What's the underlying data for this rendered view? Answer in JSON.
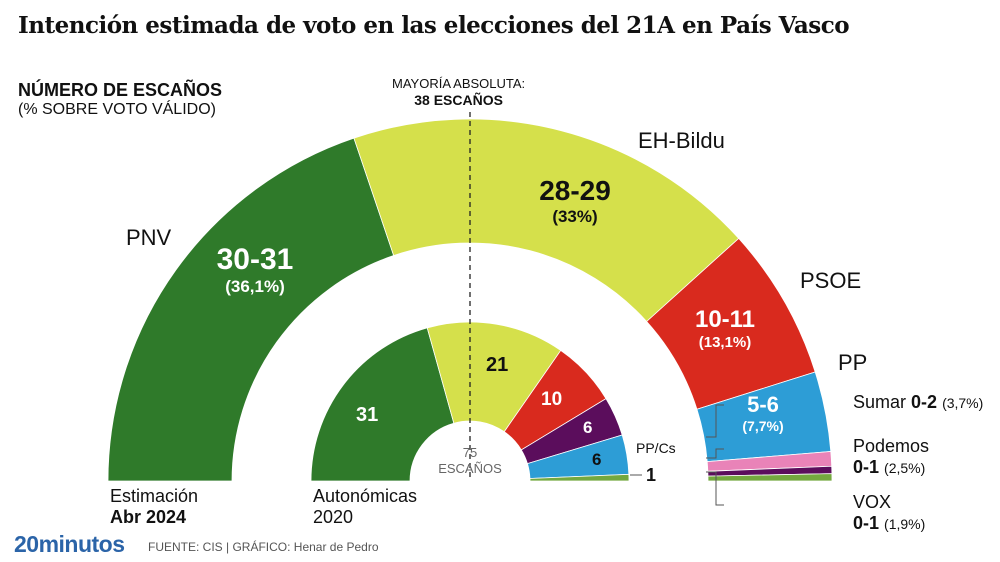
{
  "title": "Intención estimada de voto en las elecciones del 21A en País Vasco",
  "subtitle": "NÚMERO DE ESCAÑOS",
  "subtitle2": "(% SOBRE VOTO VÁLIDO)",
  "majority": {
    "label": "MAYORÍA ABSOLUTA:",
    "value": "38 ESCAÑOS"
  },
  "footer": {
    "logo": "20minutos",
    "source": "FUENTE: CIS  |  GRÁFICO: Henar de Pedro"
  },
  "chart_data": [
    {
      "type": "pie",
      "subtype": "semicircle-parliament",
      "name": "Estimación",
      "label_line1": "Estimación",
      "label_line2": "Abr 2024",
      "total_seats": 75,
      "parties": [
        {
          "party": "PNV",
          "seats": "30-31",
          "seats_min": 30,
          "seats_max": 31,
          "pct": "(36,1%)",
          "color": "#2f7a2a"
        },
        {
          "party": "EH-Bildu",
          "seats": "28-29",
          "seats_min": 28,
          "seats_max": 29,
          "pct": "(33%)",
          "color": "#d5e04b"
        },
        {
          "party": "PSOE",
          "seats": "10-11",
          "seats_min": 10,
          "seats_max": 11,
          "pct": "(13,1%)",
          "color": "#d92a1e"
        },
        {
          "party": "PP",
          "seats": "5-6",
          "seats_min": 5,
          "seats_max": 6,
          "pct": "(7,7%)",
          "color": "#2d9dd6"
        },
        {
          "party": "Sumar",
          "seats": "0-2",
          "seats_min": 0,
          "seats_max": 2,
          "pct": "(3,7%)",
          "color": "#e983b8"
        },
        {
          "party": "Podemos",
          "seats": "0-1",
          "seats_min": 0,
          "seats_max": 1,
          "pct": "(2,5%)",
          "color": "#5b0d5c"
        },
        {
          "party": "VOX",
          "seats": "0-1",
          "seats_min": 0,
          "seats_max": 1,
          "pct": "(1,9%)",
          "color": "#74a83f"
        }
      ]
    },
    {
      "type": "pie",
      "subtype": "semicircle-parliament",
      "name": "Autonómicas 2020",
      "label_line1": "Autonómicas",
      "label_line2": "2020",
      "total_seats": 75,
      "center_label": "75",
      "center_label2": "ESCAÑOS",
      "parties": [
        {
          "party": "PNV",
          "seats": 31,
          "color": "#2f7a2a"
        },
        {
          "party": "EH-Bildu",
          "seats": 21,
          "color": "#d5e04b"
        },
        {
          "party": "PSOE",
          "seats": 10,
          "color": "#d92a1e"
        },
        {
          "party": "Podemos",
          "seats": 6,
          "color": "#5b0d5c"
        },
        {
          "party": "PP/Cs",
          "seats": 6,
          "color": "#2d9dd6"
        },
        {
          "party": "VOX",
          "seats": 1,
          "color": "#74a83f"
        }
      ]
    }
  ]
}
